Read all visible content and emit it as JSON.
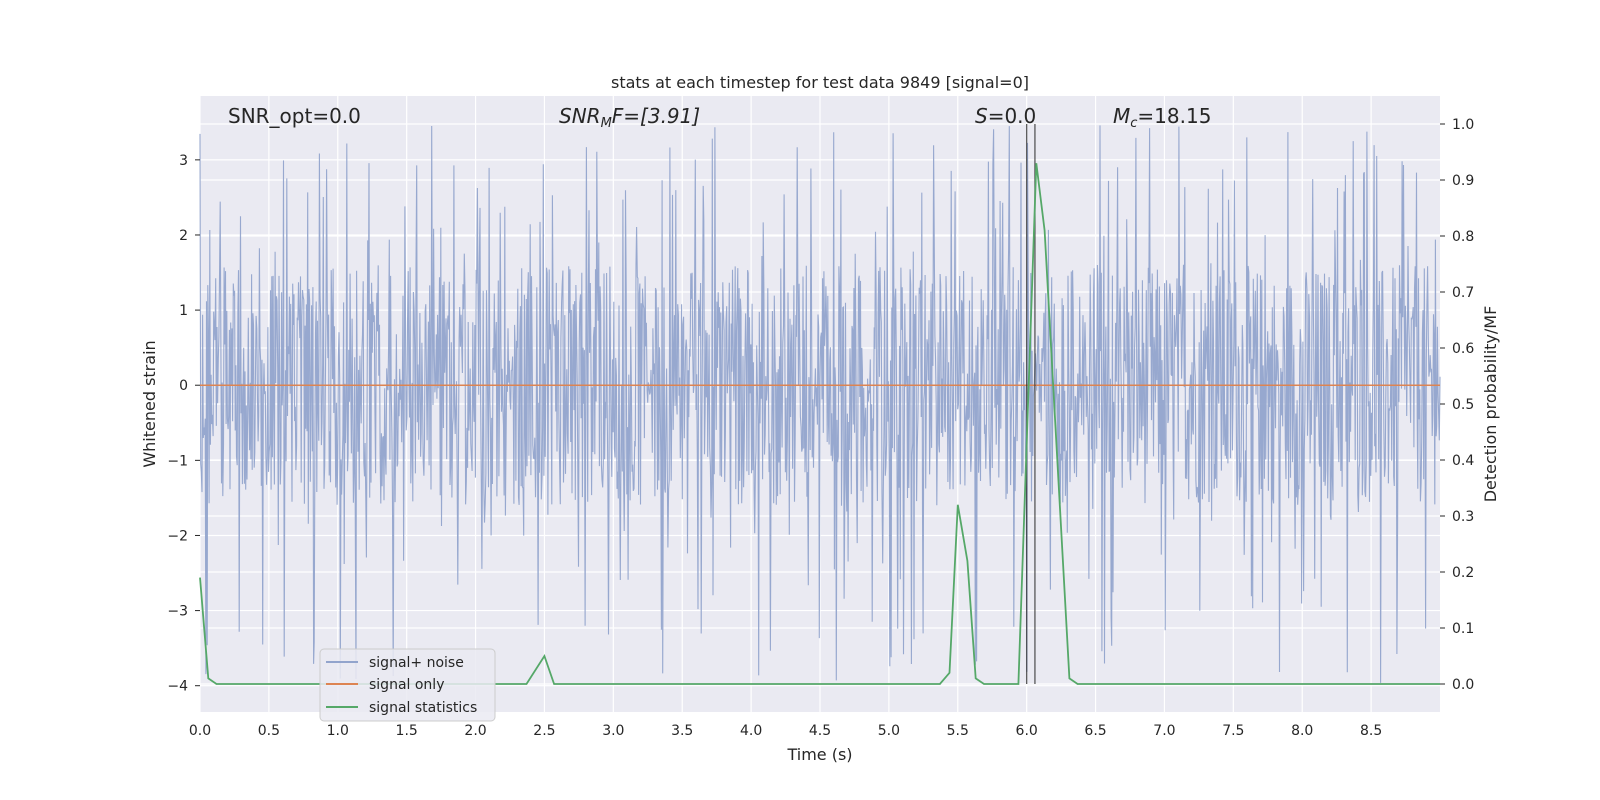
{
  "chart_data": {
    "type": "line",
    "title": "stats at each timestep for test data 9849 [signal=0]",
    "xlabel": "Time (s)",
    "ylabel": "Whitened strain",
    "y2label": "Detection probability/MF",
    "xlim": [
      0.0,
      9.0
    ],
    "ylim": [
      -4.35,
      3.85
    ],
    "y2lim": [
      -0.05,
      1.05
    ],
    "xticks": [
      "0.0",
      "0.5",
      "1.0",
      "1.5",
      "2.0",
      "2.5",
      "3.0",
      "3.5",
      "4.0",
      "4.5",
      "5.0",
      "5.5",
      "6.0",
      "6.5",
      "7.0",
      "7.5",
      "8.0",
      "8.5"
    ],
    "yticks": [
      "3",
      "2",
      "1",
      "0",
      "−1",
      "−2",
      "−3",
      "−4"
    ],
    "y2ticks": [
      "1.0",
      "0.9",
      "0.8",
      "0.7",
      "0.6",
      "0.5",
      "0.4",
      "0.3",
      "0.2",
      "0.1",
      "0.0"
    ],
    "grid": true,
    "legend_placement": "lower-left",
    "annotations": {
      "snr_opt": "SNR_opt=0.0",
      "snr_mf_main": "SNR",
      "snr_mf_sub": "M",
      "snr_mf_rest": "F=[3.91]",
      "s_main": "S",
      "s_rest": "=0.0",
      "mc_main": "M",
      "mc_sub": "c",
      "mc_rest": "=18.15"
    },
    "series": [
      {
        "name": "signal+ noise",
        "color": "#92a4cc",
        "axis": "left",
        "noise_envelope": {
          "typical_upper": 1.6,
          "typical_lower": -1.6,
          "max": 3.5,
          "min": -4.0
        }
      },
      {
        "name": "signal only",
        "color": "#dd8452",
        "axis": "left",
        "x": [
          0.0,
          9.0
        ],
        "y": [
          0.0,
          0.0
        ]
      },
      {
        "name": "signal statistics",
        "color": "#55a868",
        "axis": "right",
        "x": [
          0.0,
          0.06,
          0.12,
          2.37,
          2.5,
          2.57,
          5.37,
          5.44,
          5.5,
          5.57,
          5.63,
          5.69,
          5.94,
          6.07,
          6.13,
          6.31,
          6.37,
          9.0
        ],
        "y": [
          0.19,
          0.01,
          0.0,
          0.0,
          0.05,
          0.0,
          0.0,
          0.02,
          0.32,
          0.22,
          0.01,
          0.0,
          0.0,
          0.93,
          0.81,
          0.01,
          0.0,
          0.0
        ]
      }
    ],
    "vertical_lines": [
      6.0,
      6.06
    ]
  }
}
